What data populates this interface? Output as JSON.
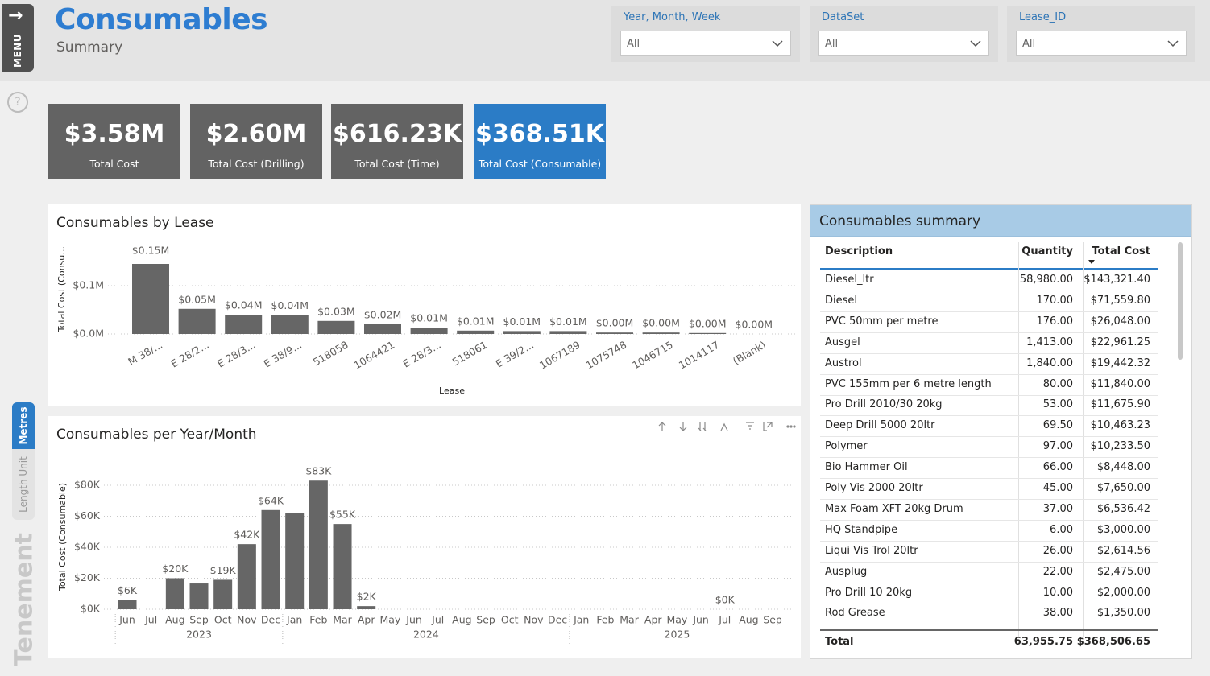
{
  "header": {
    "title": "Consumables",
    "subtitle": "Summary",
    "menu": "MENU"
  },
  "filters": [
    {
      "label": "Year, Month, Week",
      "value": "All"
    },
    {
      "label": "DataSet",
      "value": "All"
    },
    {
      "label": "Lease_ID",
      "value": "All"
    }
  ],
  "side": {
    "toggle": "Metres",
    "toggle_label": "Length Unit",
    "page": "Tenement"
  },
  "cards": [
    {
      "value": "$3.58M",
      "label": "Total Cost",
      "color": "#636363"
    },
    {
      "value": "$2.60M",
      "label": "Total Cost (Drilling)",
      "color": "#636363"
    },
    {
      "value": "$616.23K",
      "label": "Total Cost (Time)",
      "color": "#636363"
    },
    {
      "value": "$368.51K",
      "label": "Total Cost (Consumable)",
      "color": "#2b7cc6"
    }
  ],
  "chart_data": [
    {
      "type": "bar",
      "title": "Consumables by Lease",
      "x_label": "Lease",
      "y_label": "Total Cost (Consu…",
      "color": "#666666",
      "grid": true,
      "categories": [
        "M 38/...",
        "E 28/2...",
        "E 28/3...",
        "E 38/9...",
        "518058",
        "1064421",
        "E 28/3...",
        "518061",
        "E 39/2...",
        "1067189",
        "1075748",
        "1046715",
        "1014117",
        "(Blank)"
      ],
      "values": [
        145000,
        52000,
        40000,
        39000,
        27000,
        20000,
        13000,
        7000,
        6000,
        6000,
        3000,
        3000,
        2000,
        0
      ],
      "value_labels": [
        "$0.15M",
        "$0.05M",
        "$0.04M",
        "$0.04M",
        "$0.03M",
        "$0.02M",
        "$0.01M",
        "$0.01M",
        "$0.01M",
        "$0.01M",
        "$0.00M",
        "$0.00M",
        "$0.00M",
        "$0.00M"
      ],
      "ylim": [
        0,
        150000
      ],
      "yticks": [
        {
          "value": 0,
          "label": "$0.0M"
        },
        {
          "value": 100000,
          "label": "$0.1M"
        }
      ]
    },
    {
      "type": "bar",
      "title": "Consumables per Year/Month",
      "y_label": "Total Cost (Consumable)",
      "color": "#666666",
      "grid": true,
      "groups": [
        {
          "label": "2023",
          "categories": [
            "Jun",
            "Jul",
            "Aug",
            "Sep",
            "Oct",
            "Nov",
            "Dec"
          ],
          "values": [
            6000,
            null,
            20000,
            16600,
            19000,
            42000,
            64000
          ],
          "value_labels": [
            "$6K",
            null,
            "$20K",
            null,
            "$19K",
            "$42K",
            "$64K"
          ]
        },
        {
          "label": "2024",
          "categories": [
            "Jan",
            "Feb",
            "Mar",
            "Apr",
            "May",
            "Jun",
            "Jul",
            "Aug",
            "Sep",
            "Oct",
            "Nov",
            "Dec"
          ],
          "values": [
            62300,
            83000,
            55000,
            2000,
            null,
            null,
            null,
            null,
            null,
            null,
            null,
            null
          ],
          "value_labels": [
            null,
            "$83K",
            "$55K",
            "$2K",
            null,
            null,
            null,
            null,
            null,
            null,
            null,
            null
          ]
        },
        {
          "label": "2025",
          "categories": [
            "Jan",
            "Feb",
            "Mar",
            "Apr",
            "May",
            "Jun",
            "Jul",
            "Aug",
            "Sep"
          ],
          "values": [
            null,
            null,
            null,
            null,
            null,
            null,
            0,
            null,
            null
          ],
          "value_labels": [
            null,
            null,
            null,
            null,
            null,
            null,
            "$0K",
            null,
            null
          ]
        }
      ],
      "ylim": [
        0,
        90000
      ],
      "yticks": [
        {
          "value": 0,
          "label": "$0K"
        },
        {
          "value": 20000,
          "label": "$20K"
        },
        {
          "value": 40000,
          "label": "$40K"
        },
        {
          "value": 60000,
          "label": "$60K"
        },
        {
          "value": 80000,
          "label": "$80K"
        }
      ]
    }
  ],
  "table": {
    "title": "Consumables summary",
    "columns": [
      "Description",
      "Quantity",
      "Total Cost"
    ],
    "rows": [
      [
        "Diesel_ltr",
        "58,980.00",
        "$143,321.40"
      ],
      [
        "Diesel",
        "170.00",
        "$71,559.80"
      ],
      [
        "PVC 50mm per metre",
        "176.00",
        "$26,048.00"
      ],
      [
        "Ausgel",
        "1,413.00",
        "$22,961.25"
      ],
      [
        "Austrol",
        "1,840.00",
        "$19,442.32"
      ],
      [
        "PVC 155mm per 6 metre length",
        "80.00",
        "$11,840.00"
      ],
      [
        "Pro Drill 2010/30 20kg",
        "53.00",
        "$11,675.90"
      ],
      [
        "Deep Drill 5000 20ltr",
        "69.50",
        "$10,463.23"
      ],
      [
        "Polymer",
        "97.00",
        "$10,233.50"
      ],
      [
        "Bio Hammer Oil",
        "66.00",
        "$8,448.00"
      ],
      [
        "Poly Vis 2000 20ltr",
        "45.00",
        "$7,650.00"
      ],
      [
        "Max Foam XFT 20kg Drum",
        "37.00",
        "$6,536.42"
      ],
      [
        "HQ Standpipe",
        "6.00",
        "$3,000.00"
      ],
      [
        "Liqui Vis Trol 20ltr",
        "26.00",
        "$2,614.56"
      ],
      [
        "Ausplug",
        "22.00",
        "$2,475.00"
      ],
      [
        "Pro Drill 10 20kg",
        "10.00",
        "$2,000.00"
      ],
      [
        "Rod Grease",
        "38.00",
        "$1,350.00"
      ]
    ],
    "total": [
      "Total",
      "63,955.75",
      "$368,506.65"
    ]
  }
}
